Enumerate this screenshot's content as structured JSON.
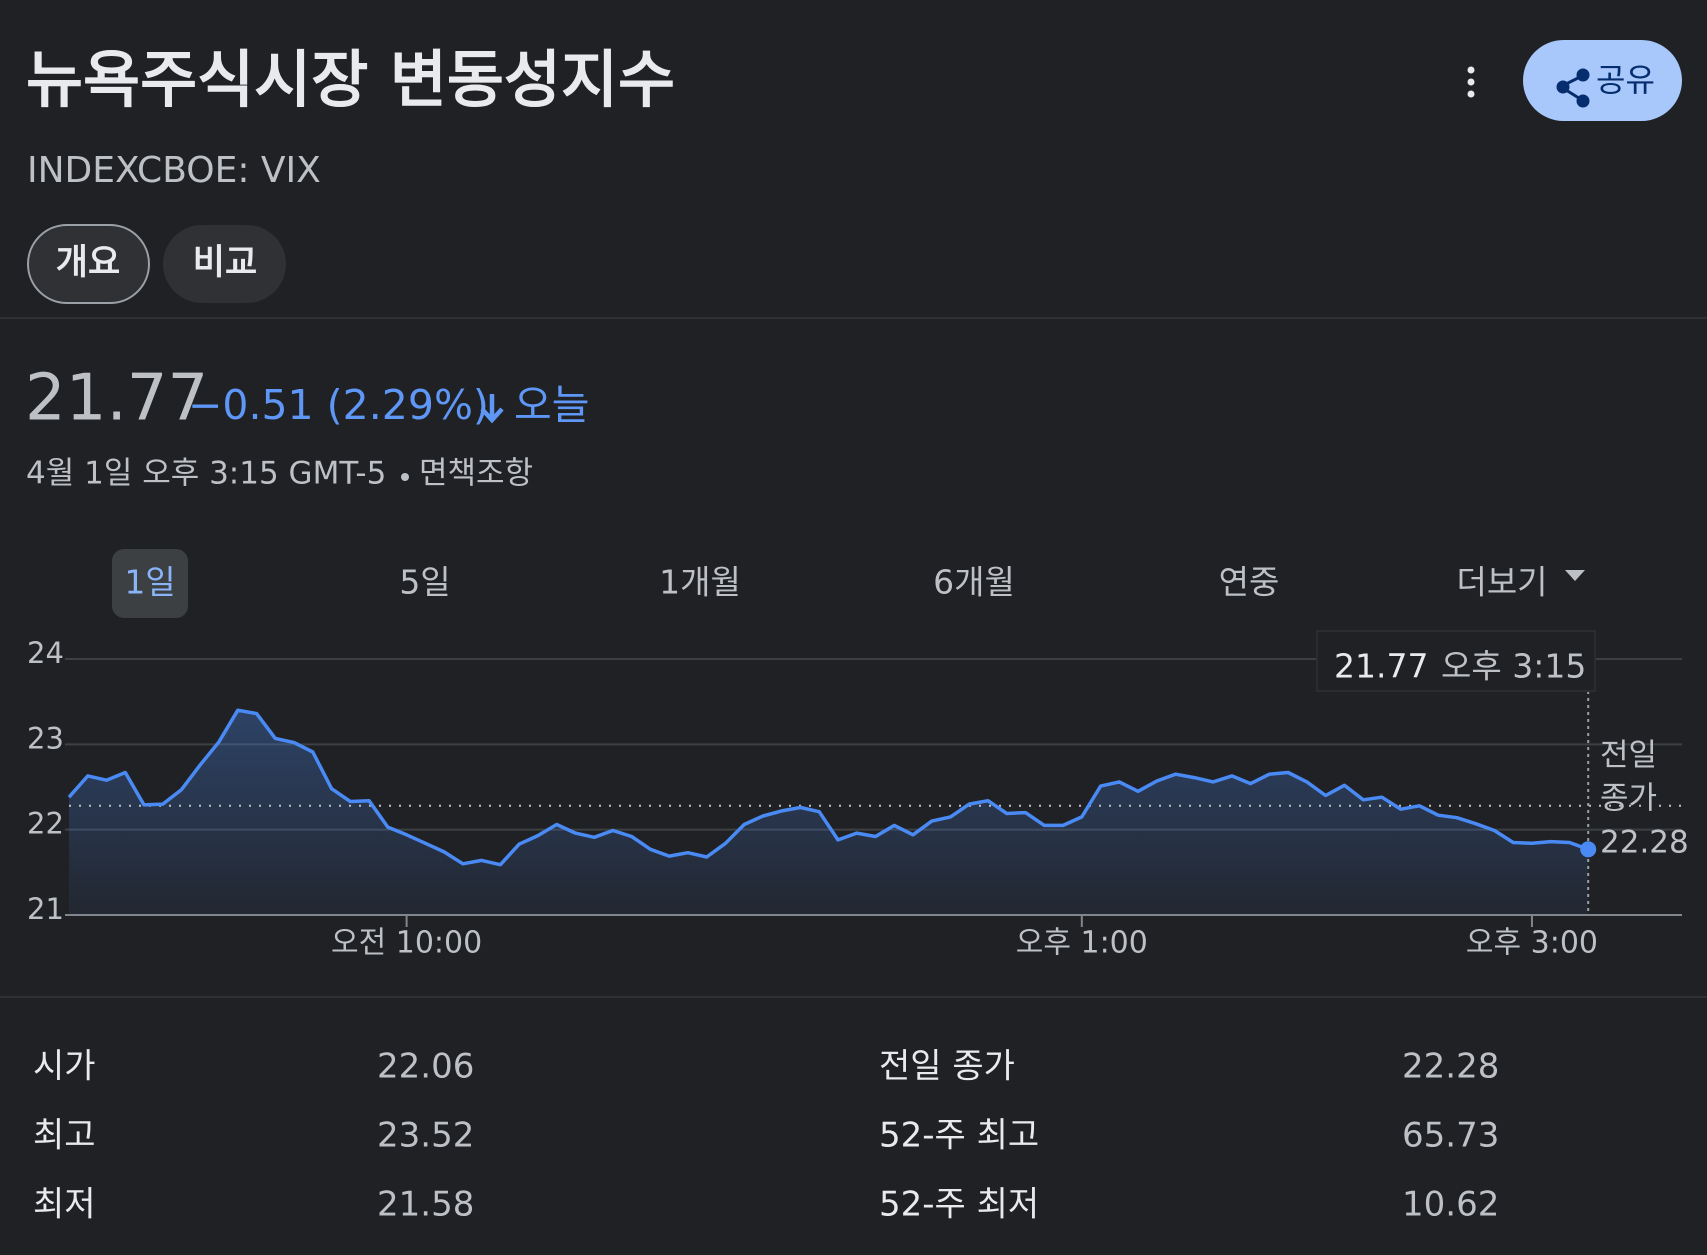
{
  "header": {
    "title": "뉴욕주식시장 변동성지수",
    "ticker": "INDEXCBOE: VIX",
    "share": "공유"
  },
  "tabs": [
    "개요",
    "비교"
  ],
  "quote": {
    "price": "21.77",
    "change": "−0.51 (2.29%)",
    "period": "오늘",
    "timestamp": "4월 1일 오후 3:15 GMT-5",
    "disclaimer": "면책조항"
  },
  "ranges": [
    "1일",
    "5일",
    "1개월",
    "6개월",
    "연중",
    "더보기"
  ],
  "chart_data": {
    "type": "line",
    "x": [
      510,
      515,
      520,
      525,
      530,
      535,
      540,
      545,
      550,
      555,
      560,
      565,
      570,
      575,
      580,
      585,
      590,
      595,
      600,
      605,
      610,
      615,
      620,
      625,
      630,
      635,
      640,
      645,
      650,
      655,
      660,
      665,
      670,
      675,
      680,
      685,
      690,
      695,
      700,
      705,
      710,
      715,
      720,
      725,
      730,
      735,
      740,
      745,
      750,
      755,
      760,
      765,
      770,
      775,
      780,
      785,
      790,
      795,
      800,
      805,
      810,
      815,
      820,
      825,
      830,
      835,
      840,
      845,
      850,
      855,
      860,
      865,
      870,
      875,
      880,
      885,
      890,
      895,
      900,
      905,
      910,
      915
    ],
    "values": [
      22.38,
      22.63,
      22.58,
      22.67,
      22.29,
      22.3,
      22.47,
      22.76,
      23.03,
      23.4,
      23.36,
      23.07,
      23.02,
      22.91,
      22.48,
      22.33,
      22.34,
      22.03,
      21.94,
      21.84,
      21.74,
      21.6,
      21.64,
      21.59,
      21.83,
      21.93,
      22.06,
      21.96,
      21.91,
      21.99,
      21.92,
      21.77,
      21.69,
      21.73,
      21.68,
      21.84,
      22.06,
      22.16,
      22.22,
      22.26,
      22.21,
      21.88,
      21.96,
      21.92,
      22.05,
      21.94,
      22.1,
      22.15,
      22.3,
      22.34,
      22.19,
      22.2,
      22.05,
      22.05,
      22.15,
      22.51,
      22.56,
      22.45,
      22.57,
      22.65,
      22.61,
      22.56,
      22.63,
      22.54,
      22.65,
      22.67,
      22.56,
      22.4,
      22.52,
      22.35,
      22.38,
      22.24,
      22.28,
      22.17,
      22.14,
      22.07,
      21.99,
      21.85,
      21.84,
      21.86,
      21.85,
      21.77
    ],
    "color": "#4a8af4",
    "xlim": [
      510,
      940
    ],
    "xticks": [
      {
        "value": 600,
        "label": "오전 10:00"
      },
      {
        "value": 780,
        "label": "오후 1:00"
      },
      {
        "value": 900,
        "label": "오후 3:00"
      }
    ],
    "ylim": [
      21,
      24
    ],
    "yticks": [
      21,
      22,
      23,
      24
    ],
    "grid": true,
    "previous_close": 22.28,
    "previous_close_label": [
      "전일",
      "종가"
    ],
    "tooltip_time": "오후 3:15"
  },
  "stats": {
    "rows": [
      [
        "시가",
        "22.06",
        "전일 종가",
        "22.28"
      ],
      [
        "최고",
        "23.52",
        "52-주 최고",
        "65.73"
      ],
      [
        "최저",
        "21.58",
        "52-주 최저",
        "10.62"
      ]
    ]
  }
}
